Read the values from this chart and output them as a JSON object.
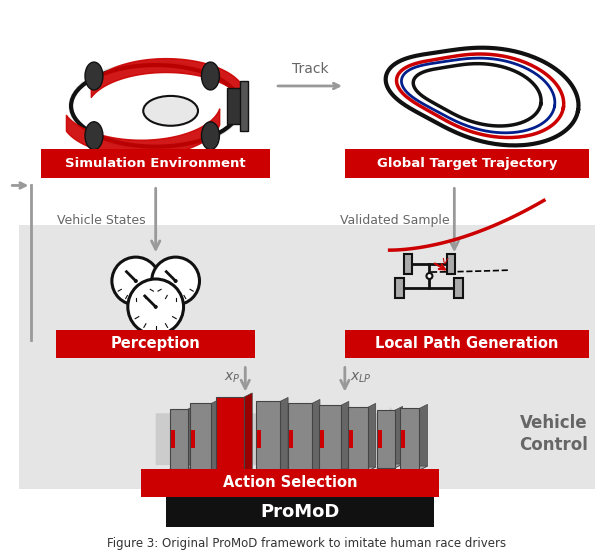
{
  "bg_color": "#ffffff",
  "panel_color": "#e5e5e5",
  "red_color": "#cc0000",
  "gray_color": "#999999",
  "dark_gray": "#666666",
  "med_gray": "#aaaaaa",
  "black": "#111111",
  "white": "#ffffff",
  "blue_color": "#001f8c",
  "title": "ProMoD",
  "label_sim": "Simulation Environment",
  "label_gtt": "Global Target Trajectory",
  "label_perc": "Perception",
  "label_lpg": "Local Path Generation",
  "label_action": "Action Selection",
  "label_vehicle": "Vehicle\nControl",
  "label_track": "Track",
  "label_vstates": "Vehicle States",
  "label_vsample": "Validated Sample",
  "label_xp": "$x_P$",
  "label_xlp": "$x_{LP}$",
  "caption": "Figure 3: Original ProMoD framework to imitate human race drivers"
}
